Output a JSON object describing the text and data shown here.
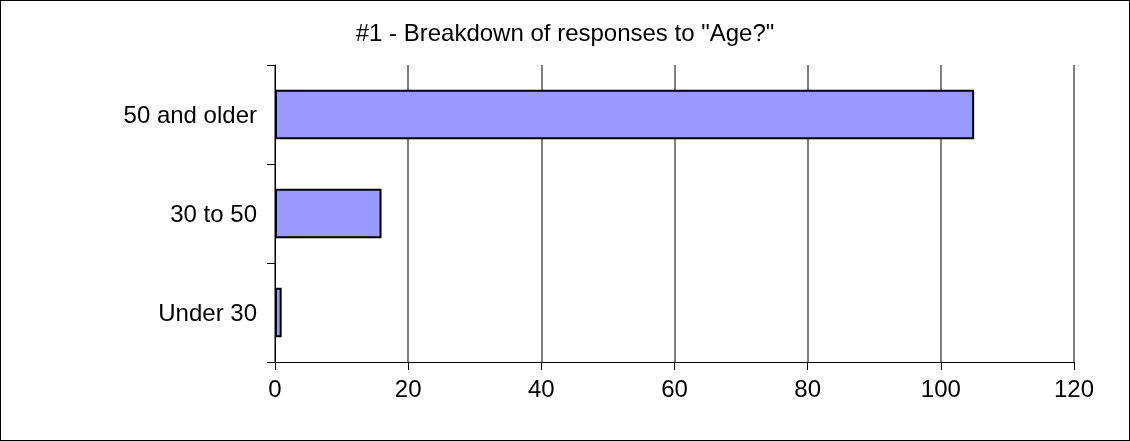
{
  "chart_data": {
    "type": "bar",
    "orientation": "horizontal",
    "title": "#1 - Breakdown of responses to \"Age?\"",
    "categories": [
      "50 and older",
      "30 to 50",
      "Under 30"
    ],
    "values": [
      105,
      16,
      1
    ],
    "color": "#9999ff",
    "xlim": [
      0,
      120
    ],
    "xticks": [
      0,
      20,
      40,
      60,
      80,
      100,
      120
    ],
    "grid": "x"
  }
}
